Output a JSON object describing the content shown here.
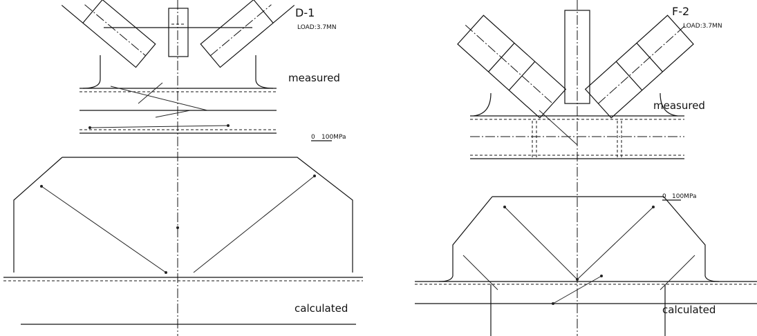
{
  "panels": [
    {
      "id": "D-1",
      "load": "LOAD:3.7MN",
      "measured_label": "measured",
      "scale_zero": "0",
      "scale_unit": "100MPa",
      "calculated_label": "calculated"
    },
    {
      "id": "F-2",
      "load": "LOAD:3.7MN",
      "measured_label": "measured",
      "scale_zero": "0",
      "scale_unit": "100MPa",
      "calculated_label": "calculated"
    }
  ]
}
